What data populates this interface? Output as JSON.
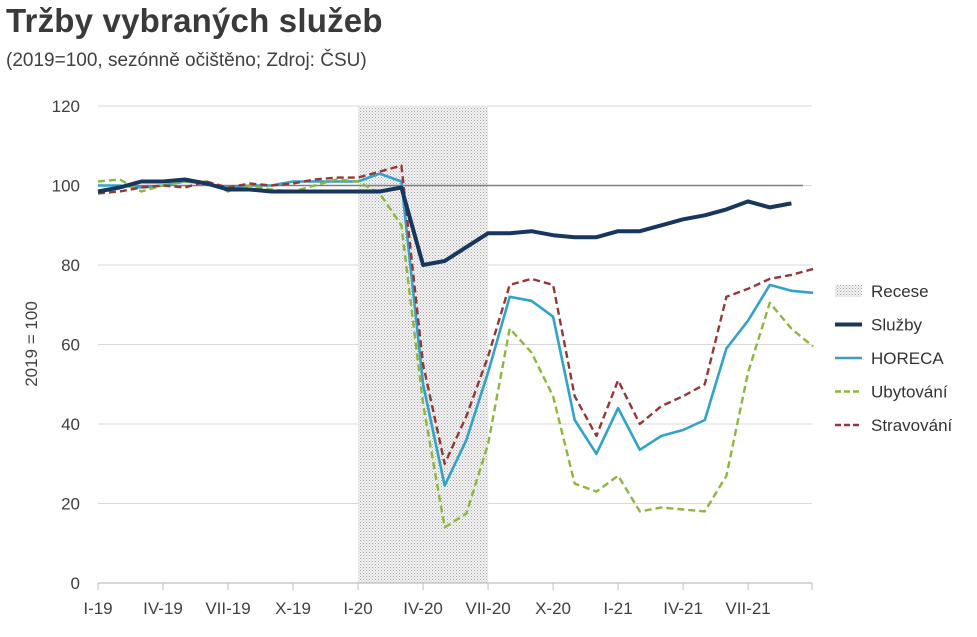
{
  "header": {
    "title": "Tržby vybraných služeb",
    "subtitle": "(2019=100, sezónně očištěno; Zdroj: ČSU)"
  },
  "chart_data": {
    "type": "line",
    "ylabel": "2019 = 100",
    "ylim": [
      0,
      120
    ],
    "yticks": [
      0,
      20,
      40,
      60,
      80,
      100,
      120
    ],
    "xtick_labels": [
      {
        "index": 0,
        "label": "I-19"
      },
      {
        "index": 3,
        "label": "IV-19"
      },
      {
        "index": 6,
        "label": "VII-19"
      },
      {
        "index": 9,
        "label": "X-19"
      },
      {
        "index": 12,
        "label": "I-20"
      },
      {
        "index": 15,
        "label": "IV-20"
      },
      {
        "index": 18,
        "label": "VII-20"
      },
      {
        "index": 21,
        "label": "X-20"
      },
      {
        "index": 24,
        "label": "I-21"
      },
      {
        "index": 27,
        "label": "IV-21"
      },
      {
        "index": 30,
        "label": "VII-21"
      }
    ],
    "reference_line": 100,
    "recession": {
      "name": "Recese",
      "start_index": 12,
      "end_index": 18
    },
    "series": [
      {
        "name": "Služby",
        "color": "#17375e",
        "style": "solid-thick",
        "values": [
          98.5,
          99.5,
          101,
          101,
          101.5,
          100.5,
          99,
          99,
          98.5,
          98.5,
          98.5,
          98.5,
          98.5,
          98.5,
          99.5,
          80,
          81,
          84.5,
          88,
          88,
          88.5,
          87.5,
          87,
          87,
          88.5,
          88.5,
          90,
          91.5,
          92.5,
          94,
          96,
          94.5,
          95.5
        ]
      },
      {
        "name": "HORECA",
        "color": "#31a3c8",
        "style": "solid",
        "values": [
          100,
          100,
          99.5,
          100,
          101,
          100.5,
          99.5,
          100,
          100,
          101,
          101,
          101,
          101,
          103,
          101,
          50,
          24.5,
          36,
          53,
          72,
          71,
          67,
          41,
          32.5,
          44,
          33.5,
          37,
          38.5,
          41,
          59,
          66,
          75,
          73.5,
          73
        ]
      },
      {
        "name": "Ubytování",
        "color": "#8db63c",
        "style": "dashed",
        "values": [
          101,
          101.5,
          98.5,
          100,
          101,
          101,
          98.5,
          100,
          99,
          98.5,
          100,
          101.5,
          101,
          98,
          90,
          45,
          14,
          17.5,
          35,
          64,
          58,
          47,
          25,
          23,
          27,
          18,
          19,
          18.5,
          18,
          27,
          53,
          70.5,
          64,
          59.5
        ]
      },
      {
        "name": "Stravování",
        "color": "#953735",
        "style": "dashed",
        "values": [
          98,
          98.5,
          99.5,
          100,
          99.5,
          101,
          99.5,
          100.5,
          100,
          100.5,
          101.5,
          102,
          102,
          103.5,
          105,
          55,
          30,
          42,
          57,
          75,
          76.5,
          75,
          47,
          37,
          51,
          40,
          44.5,
          47,
          50,
          72,
          74,
          76.5,
          77.5,
          79
        ]
      }
    ],
    "legend_placement": "right",
    "grid": true
  }
}
